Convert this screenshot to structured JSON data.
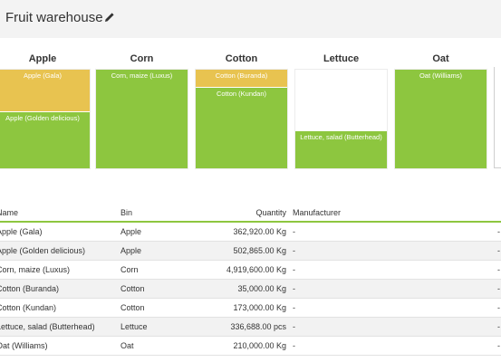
{
  "header": {
    "title": "Fruit warehouse",
    "edit_icon": "pencil-icon"
  },
  "colors": {
    "green": "#8dc63f",
    "yellow": "#e8c350"
  },
  "bins": [
    {
      "label": "Apple",
      "segments": [
        {
          "text": "Apple (Gala)",
          "color": "#e8c350"
        },
        {
          "text": "Apple (Golden delicious)",
          "color": "#8dc63f"
        }
      ]
    },
    {
      "label": "Corn",
      "segments": [
        {
          "text": "Corn, maize (Luxus)",
          "color": "#8dc63f"
        }
      ]
    },
    {
      "label": "Cotton",
      "segments": [
        {
          "text": "Cotton (Buranda)",
          "color": "#e8c350"
        },
        {
          "text": "Cotton (Kundan)",
          "color": "#8dc63f"
        }
      ]
    },
    {
      "label": "Lettuce",
      "segments": [
        {
          "text": "Lettuce, salad (Butterhead)",
          "color": "#8dc63f"
        }
      ]
    },
    {
      "label": "Oat",
      "segments": [
        {
          "text": "Oat (Williams)",
          "color": "#8dc63f"
        }
      ]
    }
  ],
  "table": {
    "headers": {
      "name": "Name",
      "bin": "Bin",
      "quantity": "Quantity",
      "manufacturer": "Manufacturer"
    },
    "rows": [
      {
        "name": "Apple (Gala)",
        "bin": "Apple",
        "quantity": "362,920.00 Kg",
        "manufacturer": "-"
      },
      {
        "name": "Apple (Golden delicious)",
        "bin": "Apple",
        "quantity": "502,865.00 Kg",
        "manufacturer": "-"
      },
      {
        "name": "Corn, maize (Luxus)",
        "bin": "Corn",
        "quantity": "4,919,600.00 Kg",
        "manufacturer": "-"
      },
      {
        "name": "Cotton (Buranda)",
        "bin": "Cotton",
        "quantity": "35,000.00 Kg",
        "manufacturer": "-"
      },
      {
        "name": "Cotton (Kundan)",
        "bin": "Cotton",
        "quantity": "173,000.00 Kg",
        "manufacturer": "-"
      },
      {
        "name": "Lettuce, salad (Butterhead)",
        "bin": "Lettuce",
        "quantity": "336,688.00 pcs",
        "manufacturer": "-"
      },
      {
        "name": "Oat (Williams)",
        "bin": "Oat",
        "quantity": "210,000.00 Kg",
        "manufacturer": "-"
      }
    ]
  }
}
